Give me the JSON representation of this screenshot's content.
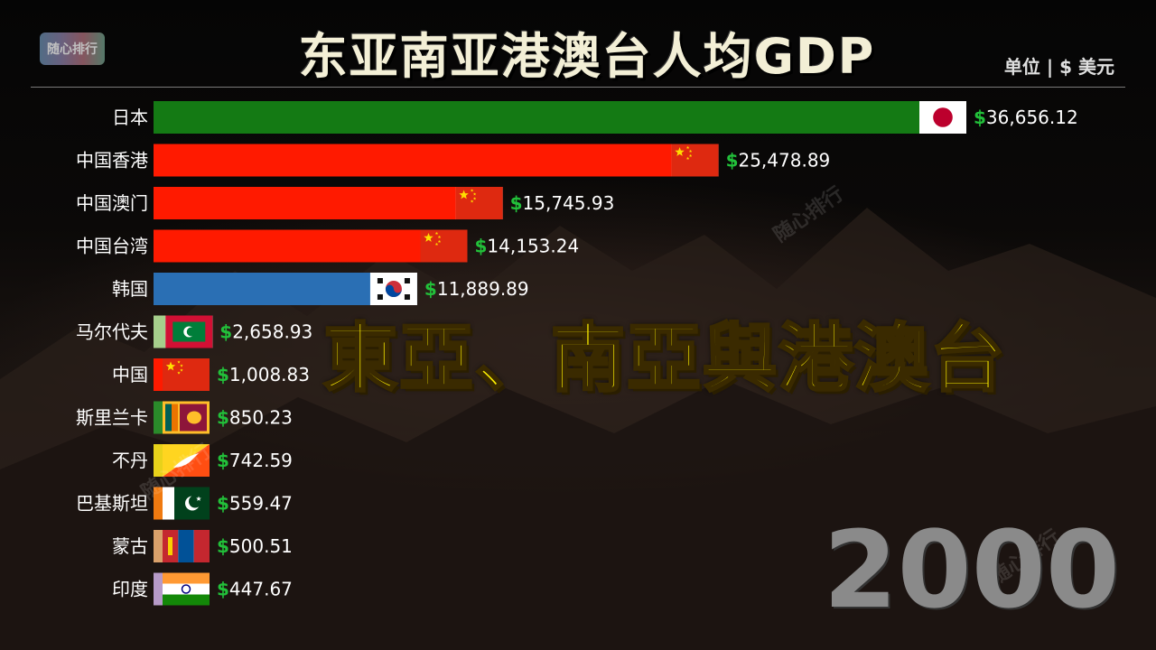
{
  "logo": {
    "text": "随心排行"
  },
  "header": {
    "title": "东亚南亚港澳台人均GDP",
    "unit": "单位 | $ 美元"
  },
  "overlay": {
    "text": "東亞、南亞與港澳台"
  },
  "year": "2000",
  "watermark": "随心排行",
  "chart_data": {
    "type": "bar",
    "orientation": "horizontal",
    "title": "东亚南亚港澳台人均GDP",
    "unit": "单位 | $ 美元",
    "xlim": [
      0,
      36656.12
    ],
    "currency_symbol": "$",
    "categories": [
      "日本",
      "中国香港",
      "中国澳门",
      "中国台湾",
      "韩国",
      "马尔代夫",
      "中国",
      "斯里兰卡",
      "不丹",
      "巴基斯坦",
      "蒙古",
      "印度"
    ],
    "values": [
      36656.12,
      25478.89,
      15745.93,
      14153.24,
      11889.89,
      2658.93,
      1008.83,
      850.23,
      742.59,
      559.47,
      500.51,
      447.67
    ],
    "value_labels": [
      "36,656.12",
      "25,478.89",
      "15,745.93",
      "14,153.24",
      "11,889.89",
      "2,658.93",
      "1,008.83",
      "850.23",
      "742.59",
      "559.47",
      "500.51",
      "447.67"
    ],
    "bar_colors": [
      "#147a14",
      "#ff1a00",
      "#ff1a00",
      "#ff1a00",
      "#2a6fb4",
      "#a6cf8c",
      "#ff1a00",
      "#2a8a2a",
      "#e8d21a",
      "#f07a10",
      "#d9a06a",
      "#b69ac8"
    ],
    "flags": [
      "japan-flag",
      "china-flag",
      "china-flag",
      "china-flag",
      "korea-flag",
      "maldives-flag",
      "china-flag",
      "sri-lanka-flag",
      "bhutan-flag",
      "pakistan-flag",
      "mongolia-flag",
      "india-flag"
    ],
    "value_color": "#ffffff",
    "dollar_color": "#22c03a",
    "grid": false,
    "legend": "none",
    "year": "2000"
  }
}
